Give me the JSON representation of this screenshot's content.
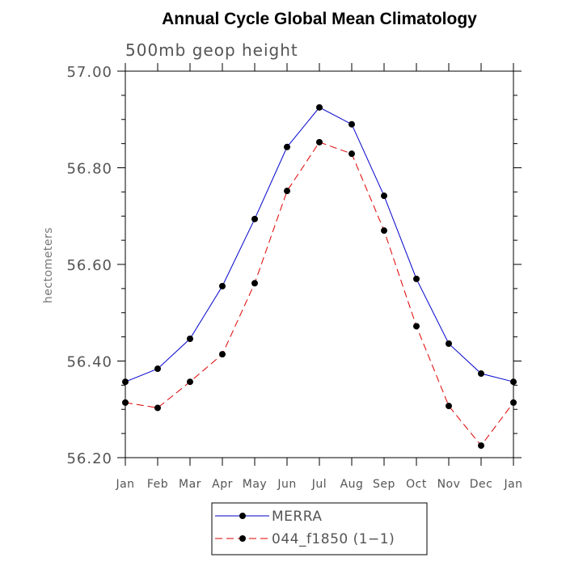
{
  "chart_data": {
    "type": "line",
    "title": "Annual Cycle Global Mean Climatology",
    "subtitle": "500mb geop height",
    "ylabel": "hectometers",
    "xlabel": "",
    "categories": [
      "Jan",
      "Feb",
      "Mar",
      "Apr",
      "May",
      "Jun",
      "Jul",
      "Aug",
      "Sep",
      "Oct",
      "Nov",
      "Dec",
      "Jan"
    ],
    "yticks": [
      "56.20",
      "56.40",
      "56.60",
      "56.80",
      "57.00"
    ],
    "ylim": [
      56.2,
      57.0
    ],
    "grid": false,
    "legend_position": "bottom-center",
    "series": [
      {
        "name": "MERRA",
        "color": "#0000cc",
        "dash": "solid",
        "values": [
          56.357,
          56.384,
          56.446,
          56.555,
          56.694,
          56.843,
          56.925,
          56.89,
          56.742,
          56.57,
          56.436,
          56.374,
          56.357
        ]
      },
      {
        "name": "044_f1850 (1−1)",
        "color": "#dd0000",
        "dash": "dashed",
        "values": [
          56.314,
          56.303,
          56.357,
          56.414,
          56.561,
          56.752,
          56.853,
          56.829,
          56.67,
          56.472,
          56.307,
          56.225,
          56.314
        ]
      }
    ]
  }
}
